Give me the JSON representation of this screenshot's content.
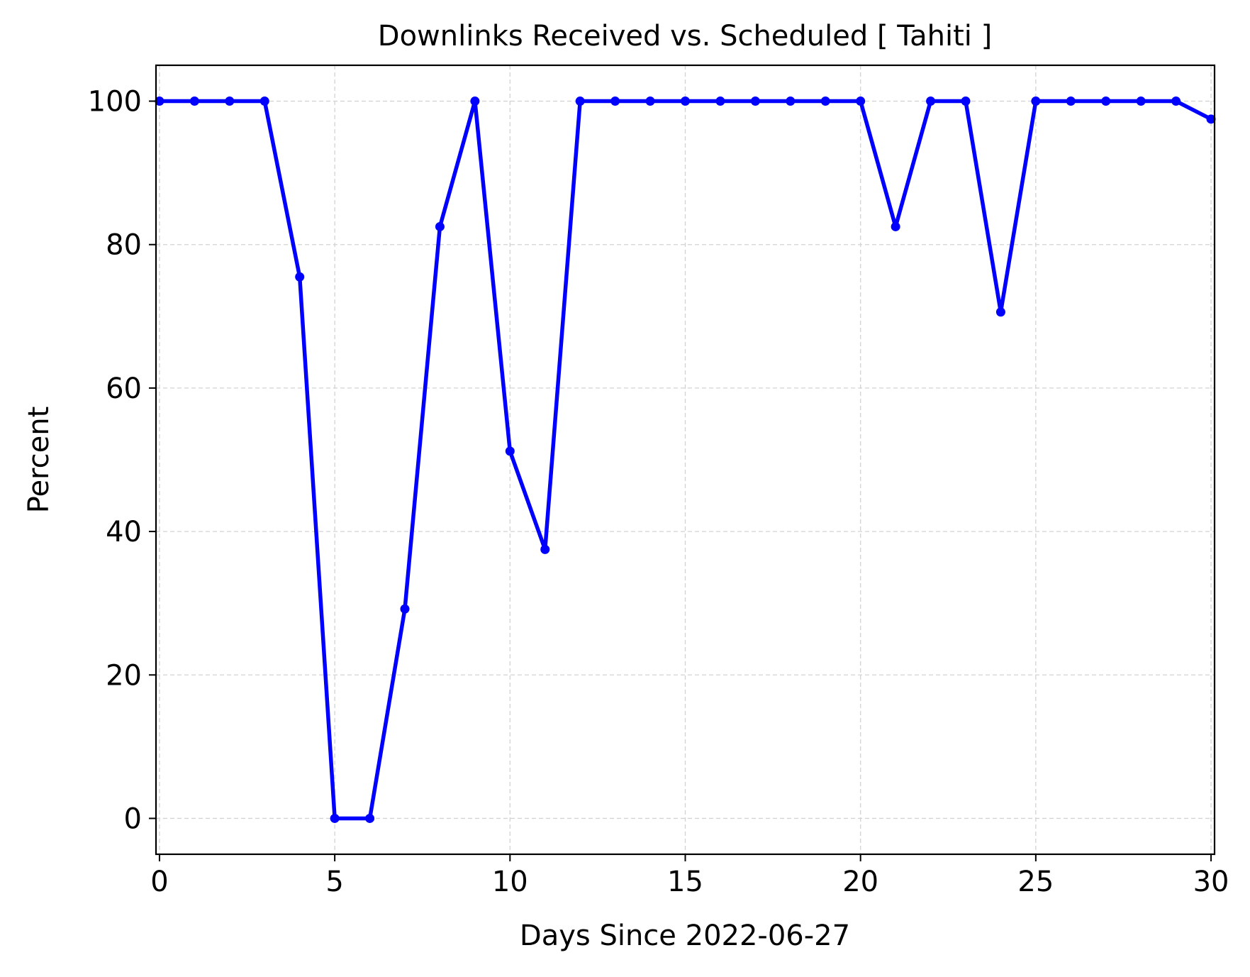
{
  "chart_data": {
    "type": "line",
    "title": "Downlinks Received vs. Scheduled [ Tahiti ]",
    "xlabel": "Days Since 2022-06-27",
    "ylabel": "Percent",
    "xlim": [
      -0.1,
      30.1
    ],
    "ylim": [
      -5,
      105
    ],
    "xticks": [
      0,
      5,
      10,
      15,
      20,
      25,
      30
    ],
    "yticks": [
      0,
      20,
      40,
      60,
      80,
      100
    ],
    "grid": true,
    "legend": "none",
    "series": [
      {
        "color": "#0000ff",
        "marker": "circle",
        "x": [
          0,
          1,
          2,
          3,
          4,
          5,
          6,
          7,
          8,
          9,
          10,
          11,
          12,
          13,
          14,
          15,
          16,
          17,
          18,
          19,
          20,
          21,
          22,
          23,
          24,
          25,
          26,
          27,
          28,
          29,
          30
        ],
        "y": [
          100,
          100,
          100,
          100,
          75.5,
          0,
          0,
          29.2,
          82.5,
          100,
          51.2,
          37.5,
          100,
          100,
          100,
          100,
          100,
          100,
          100,
          100,
          100,
          82.5,
          100,
          100,
          70.6,
          100,
          100,
          100,
          100,
          100,
          97.5
        ]
      }
    ]
  },
  "colors": {
    "line": "#0000ff",
    "grid": "#d3d3d3",
    "axes": "#000000"
  }
}
